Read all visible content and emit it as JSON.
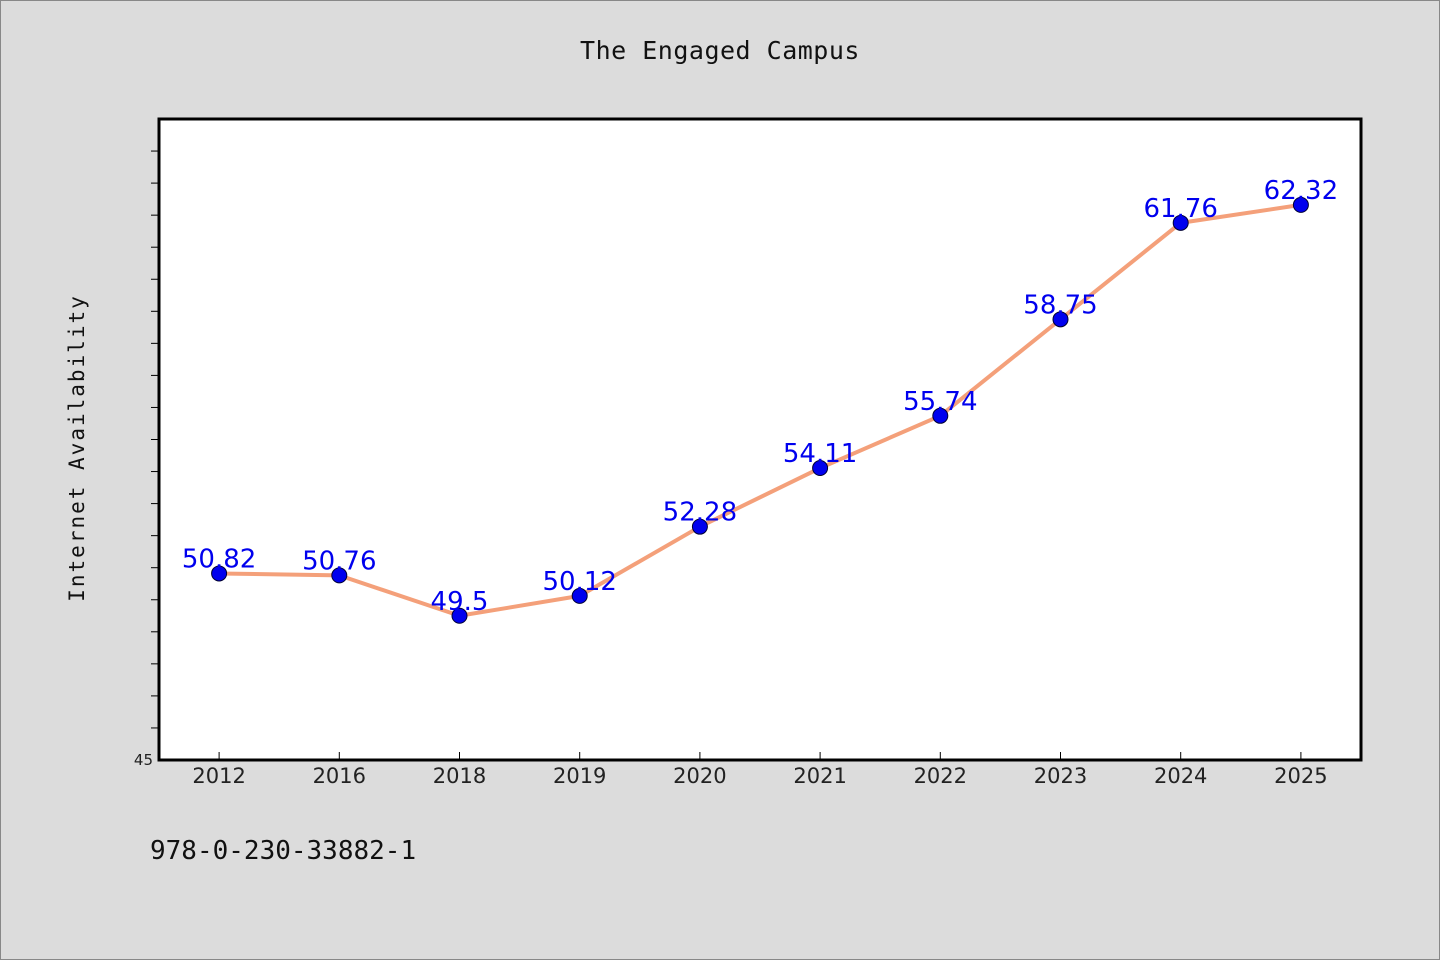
{
  "chart_data": {
    "type": "line",
    "title": "The Engaged Campus",
    "xlabel": "",
    "ylabel": "Internet Availability",
    "categories": [
      "2012",
      "2016",
      "2018",
      "2019",
      "2020",
      "2021",
      "2022",
      "2023",
      "2024",
      "2025"
    ],
    "series": [
      {
        "values": [
          50.82,
          50.76,
          49.5,
          50.12,
          52.28,
          54.11,
          55.74,
          58.75,
          61.76,
          62.32
        ],
        "line_color": "#f4a07a",
        "marker_color": "#0000ee"
      }
    ],
    "ylim": [
      45,
      65
    ],
    "y_tick_labels": [
      "45"
    ],
    "data_labels": [
      "50.82",
      "50.76",
      "49.5",
      "50.12",
      "52.28",
      "54.11",
      "55.74",
      "58.75",
      "61.76",
      "62.32"
    ],
    "label_color": "#0000ee",
    "grid": false,
    "legend": "none"
  },
  "footer": {
    "isbn": "978-0-230-33882-1"
  },
  "colors": {
    "background": "#dcdcdc",
    "plot_background": "#ffffff"
  }
}
